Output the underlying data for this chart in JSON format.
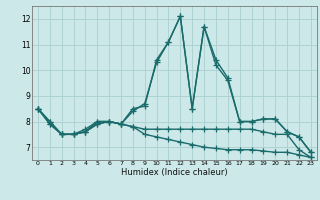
{
  "xlabel": "Humidex (Indice chaleur)",
  "xlim": [
    -0.5,
    23.5
  ],
  "ylim": [
    6.5,
    12.5
  ],
  "yticks": [
    7,
    8,
    9,
    10,
    11,
    12
  ],
  "xticks": [
    0,
    1,
    2,
    3,
    4,
    5,
    6,
    7,
    8,
    9,
    10,
    11,
    12,
    13,
    14,
    15,
    16,
    17,
    18,
    19,
    20,
    21,
    22,
    23
  ],
  "xtick_labels": [
    "0",
    "1",
    "2",
    "3",
    "4",
    "5",
    "6",
    "7",
    "8",
    "9",
    "10",
    "11",
    "12",
    "13",
    "14",
    "15",
    "16",
    "17",
    "18",
    "19",
    "20",
    "21",
    "22",
    "23"
  ],
  "bg_color": "#cce8e8",
  "grid_color": "#aad0d0",
  "line_color": "#1a6b6b",
  "line_width": 1.0,
  "marker": "+",
  "marker_size": 4,
  "marker_ew": 0.9,
  "lines": [
    {
      "x": [
        0,
        1,
        2,
        3,
        4,
        5,
        6,
        7,
        8,
        9,
        10,
        11,
        12,
        13,
        14,
        15,
        16,
        17,
        18,
        19,
        20,
        21,
        22,
        23
      ],
      "y": [
        8.5,
        8.0,
        7.5,
        7.5,
        7.6,
        8.0,
        8.0,
        7.9,
        8.4,
        8.7,
        10.3,
        11.1,
        12.1,
        8.5,
        11.7,
        10.2,
        9.6,
        8.0,
        8.0,
        8.1,
        8.1,
        7.6,
        7.4,
        6.8
      ]
    },
    {
      "x": [
        0,
        1,
        2,
        3,
        4,
        5,
        6,
        7,
        8,
        9,
        10,
        11,
        12,
        13,
        14,
        15,
        16,
        17,
        18,
        19,
        20,
        21,
        22,
        23
      ],
      "y": [
        8.5,
        8.0,
        7.5,
        7.5,
        7.7,
        8.0,
        8.0,
        7.9,
        8.5,
        8.6,
        10.4,
        11.1,
        12.1,
        8.5,
        11.7,
        10.4,
        9.7,
        8.0,
        8.0,
        8.1,
        8.1,
        7.6,
        7.4,
        6.8
      ]
    },
    {
      "x": [
        0,
        1,
        2,
        3,
        4,
        5,
        6,
        7,
        8,
        9,
        10,
        11,
        12,
        13,
        14,
        15,
        16,
        17,
        18,
        19,
        20,
        21,
        22,
        23
      ],
      "y": [
        8.5,
        7.9,
        7.5,
        7.5,
        7.6,
        7.9,
        8.0,
        7.9,
        7.8,
        7.7,
        7.7,
        7.7,
        7.7,
        7.7,
        7.7,
        7.7,
        7.7,
        7.7,
        7.7,
        7.6,
        7.5,
        7.5,
        6.9,
        6.6
      ]
    },
    {
      "x": [
        0,
        1,
        2,
        3,
        4,
        5,
        6,
        7,
        8,
        9,
        10,
        11,
        12,
        13,
        14,
        15,
        16,
        17,
        18,
        19,
        20,
        21,
        22,
        23
      ],
      "y": [
        8.5,
        7.9,
        7.5,
        7.5,
        7.6,
        7.9,
        8.0,
        7.9,
        7.8,
        7.5,
        7.4,
        7.3,
        7.2,
        7.1,
        7.0,
        6.95,
        6.9,
        6.9,
        6.9,
        6.85,
        6.8,
        6.8,
        6.7,
        6.6
      ]
    }
  ]
}
